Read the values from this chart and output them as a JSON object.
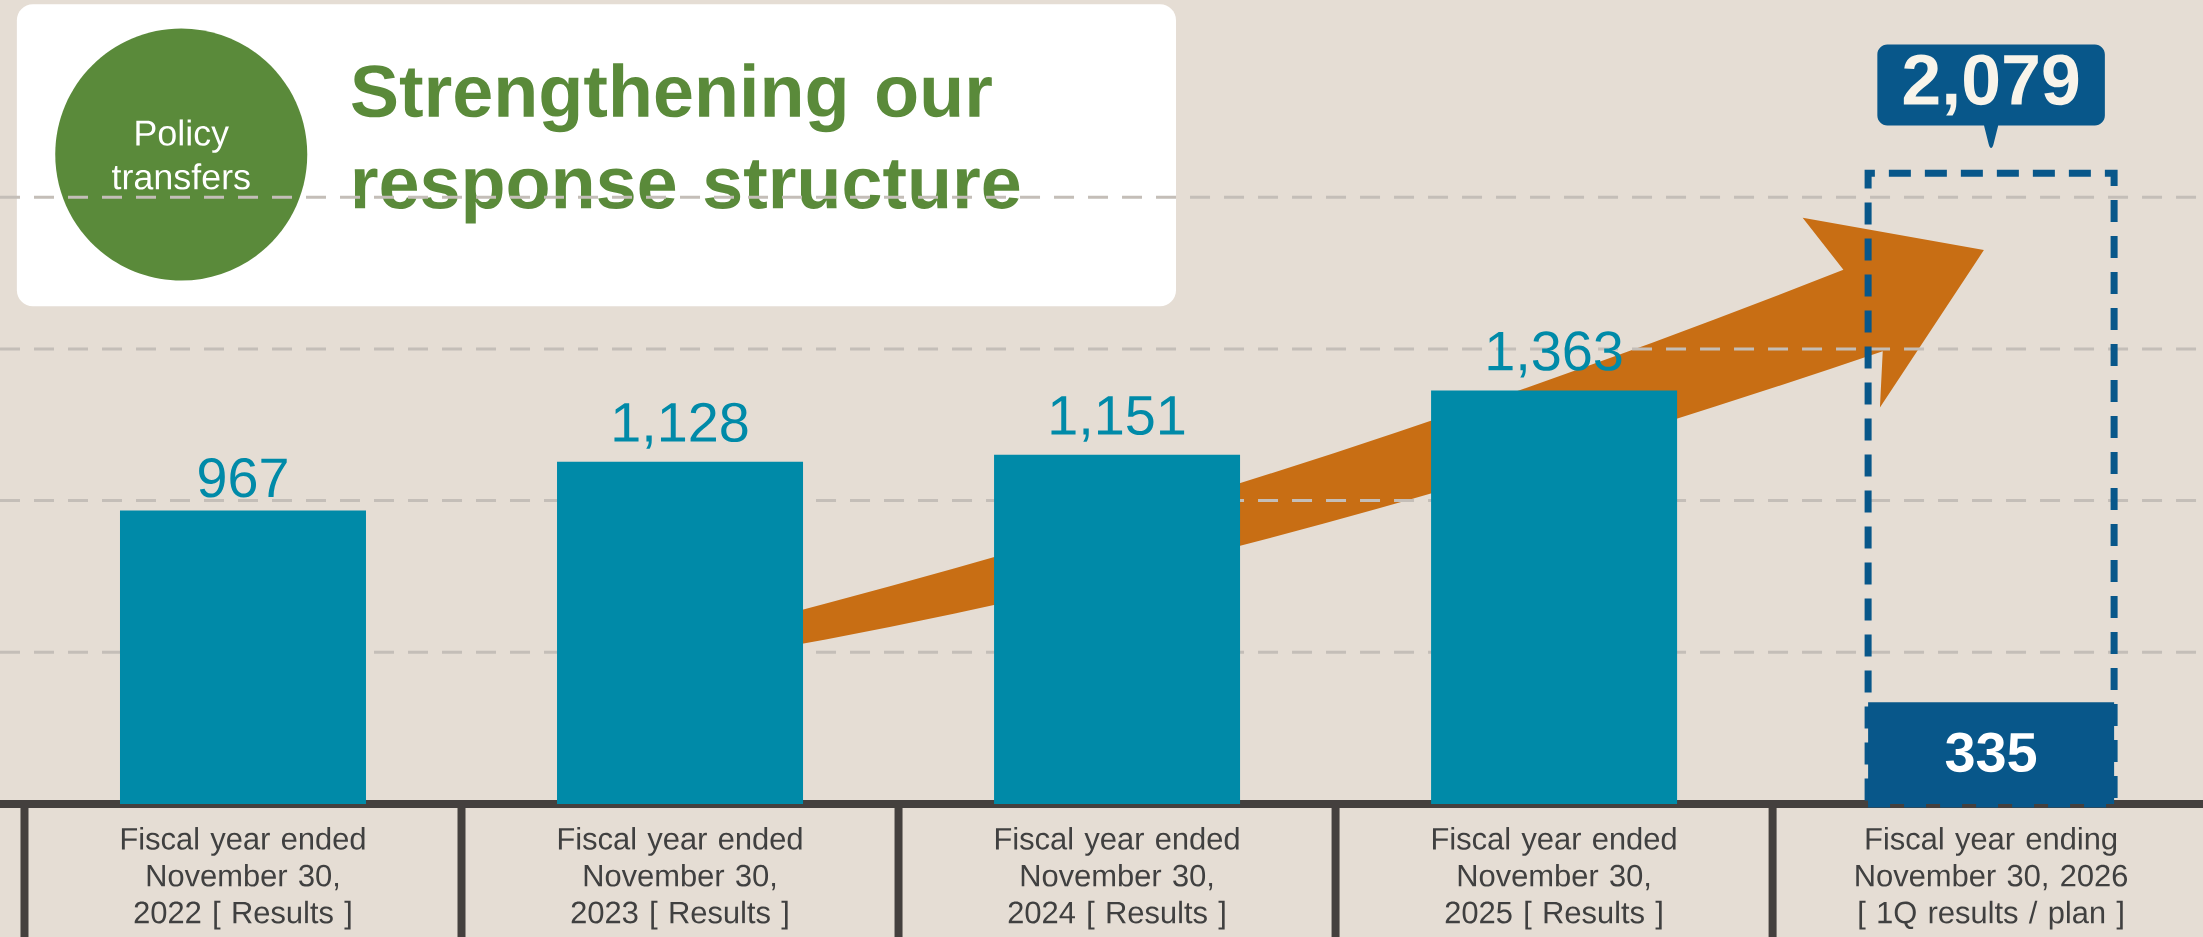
{
  "chart_data": {
    "type": "bar",
    "title": "Strengthening our response structure",
    "annotations": [
      "Policy transfers"
    ],
    "categories": [
      "Fiscal year ended November 30, 2022 [ Results ]",
      "Fiscal year ended November 30, 2023 [ Results ]",
      "Fiscal year ended November 30, 2024 [ Results ]",
      "Fiscal year ended November 30, 2025 [ Results ]",
      "Fiscal year ending November 30, 2026 [ 1Q results / plan ]"
    ],
    "series": [
      {
        "color": "#008aa8",
        "colors": [
          "#008aa8",
          "#008aa8",
          "#008aa8",
          "#008aa8",
          "#08578a"
        ],
        "values": [
          967,
          1128,
          1151,
          1363,
          335
        ],
        "value_labels": [
          "967",
          "1,128",
          "1,151",
          "1,363",
          "335"
        ]
      },
      {
        "color": "#08578a",
        "line_style": "dashed",
        "values": [
          null,
          null,
          null,
          null,
          2079
        ],
        "value_labels": [
          null,
          null,
          null,
          null,
          "2,079"
        ]
      }
    ],
    "ylim": [
      0,
      2650
    ],
    "yticks": [
      {
        "value": 500,
        "label": null
      },
      {
        "value": 1000,
        "label": null
      },
      {
        "value": 1500,
        "label": null
      },
      {
        "value": 2000,
        "label": null
      }
    ],
    "grid": "y",
    "tick_labels": "x"
  }
}
